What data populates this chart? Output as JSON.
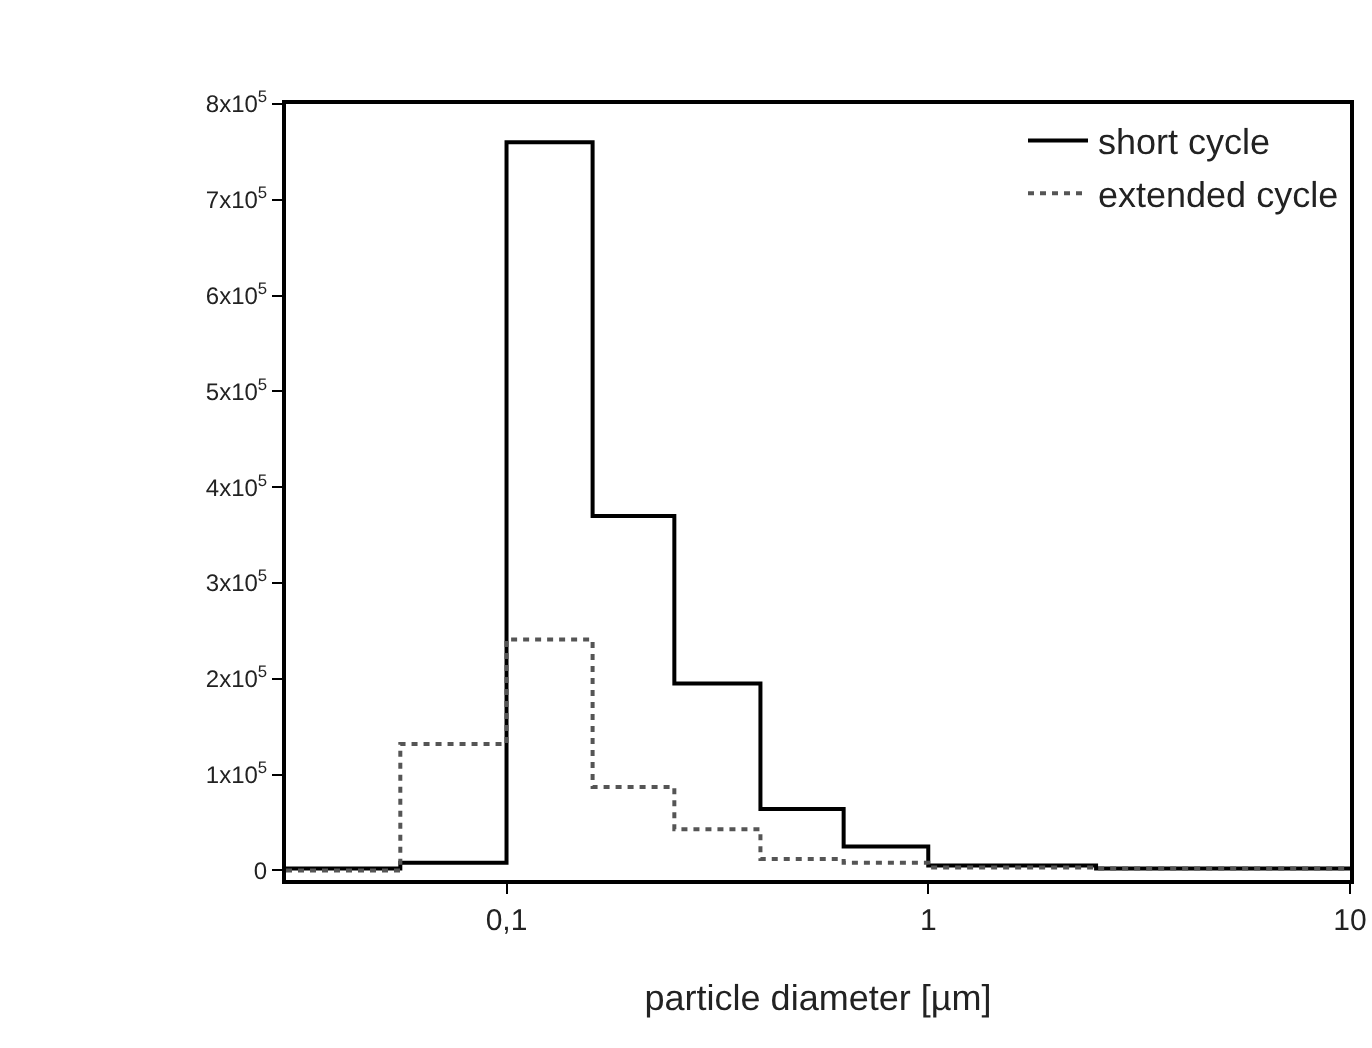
{
  "chart_data": {
    "type": "step",
    "xlabel": "particle diameter [µm]",
    "log": "x",
    "x": [
      0.03,
      0.056,
      0.1,
      0.16,
      0.25,
      0.4,
      0.63,
      1,
      2.5,
      10
    ],
    "series": [
      {
        "name": "short cycle",
        "color": "#000000",
        "line_style": "solid",
        "values": [
          2000,
          8000,
          760000,
          370000,
          195000,
          64000,
          25000,
          5000,
          2000,
          2000
        ]
      },
      {
        "name": "extended cycle",
        "color": "#555555",
        "line_style": "dotted",
        "values": [
          0,
          132000,
          241000,
          87000,
          43000,
          12000,
          8000,
          3000,
          2000,
          2000
        ]
      }
    ],
    "xlim": [
      0.03,
      10
    ],
    "xticks": [
      {
        "value": 0.1,
        "label": "0,1"
      },
      1,
      10
    ],
    "ylim": [
      -10000,
      800000
    ],
    "yticks": [
      0,
      {
        "value": 100000,
        "label": "1x10$^{5}$"
      },
      {
        "value": 200000,
        "label": "2x10$^{5}$"
      },
      {
        "value": 300000,
        "label": "3x10$^{5}$"
      },
      {
        "value": 400000,
        "label": "4x10$^{5}$"
      },
      {
        "value": 500000,
        "label": "5x10$^{5}$"
      },
      {
        "value": 600000,
        "label": "6x10$^{5}$"
      },
      {
        "value": 700000,
        "label": "7x10$^{5}$"
      },
      {
        "value": 800000,
        "label": "8x10$^{5}$"
      }
    ],
    "grid": false,
    "legend": "top right"
  }
}
